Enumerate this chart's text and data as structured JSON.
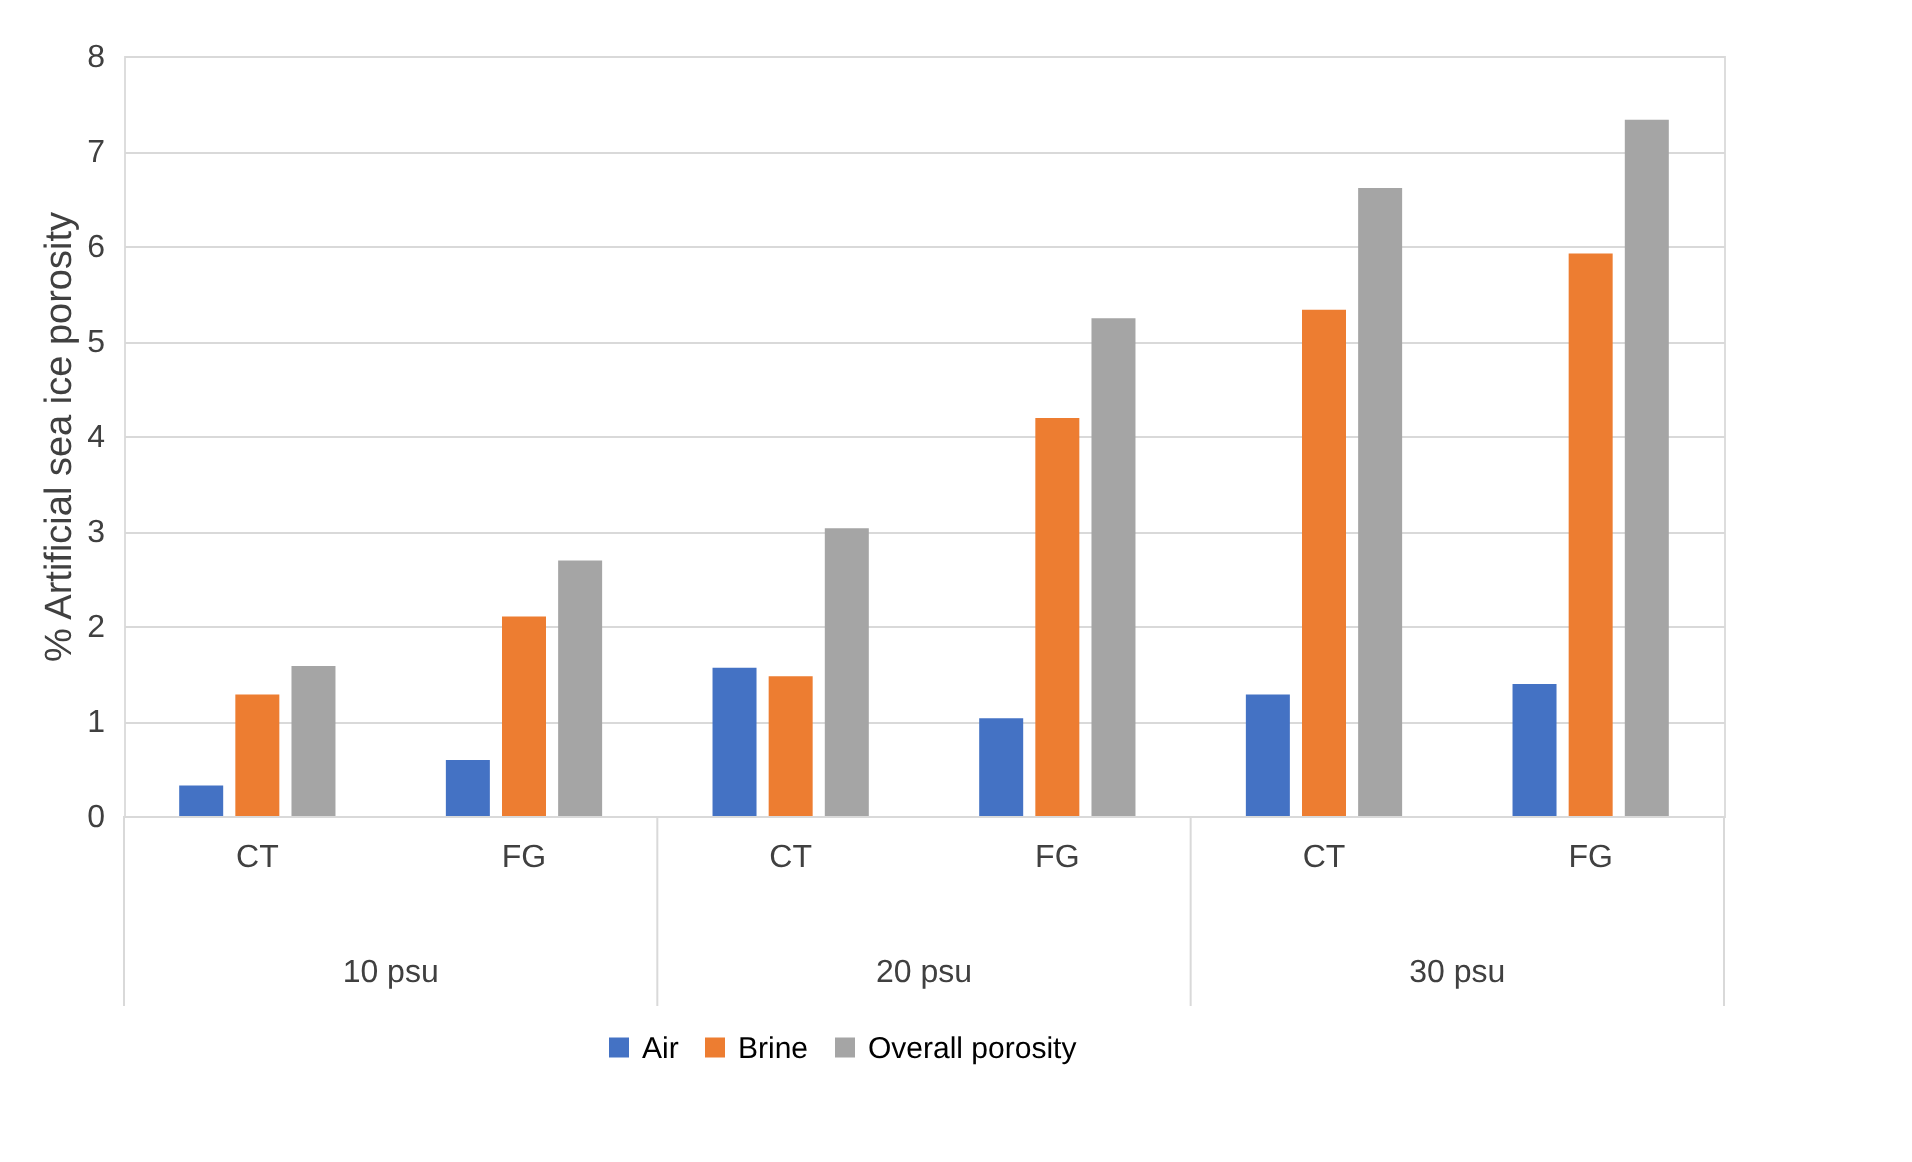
{
  "chart_data": {
    "type": "bar",
    "ylabel": "% Artificial sea ice porosity",
    "categories": [
      "CT",
      "FG",
      "CT",
      "FG",
      "CT",
      "FG"
    ],
    "annotations": [
      "10 psu",
      "20 psu",
      "30 psu"
    ],
    "series": [
      {
        "name": "Air",
        "color": "#4472c4",
        "values": [
          0.32,
          0.59,
          1.56,
          1.03,
          1.28,
          1.39
        ]
      },
      {
        "name": "Brine",
        "color": "#ed7d31",
        "values": [
          1.28,
          2.1,
          1.47,
          4.19,
          5.33,
          5.92
        ]
      },
      {
        "name": "Overall porosity",
        "color": "#a5a5a5",
        "values": [
          1.58,
          2.69,
          3.03,
          5.24,
          6.61,
          7.33
        ]
      }
    ],
    "ylim": [
      0,
      8
    ],
    "yticks": [
      0,
      1,
      2,
      3,
      4,
      5,
      6,
      7,
      8
    ],
    "grid": "y",
    "legend": "bottom"
  }
}
